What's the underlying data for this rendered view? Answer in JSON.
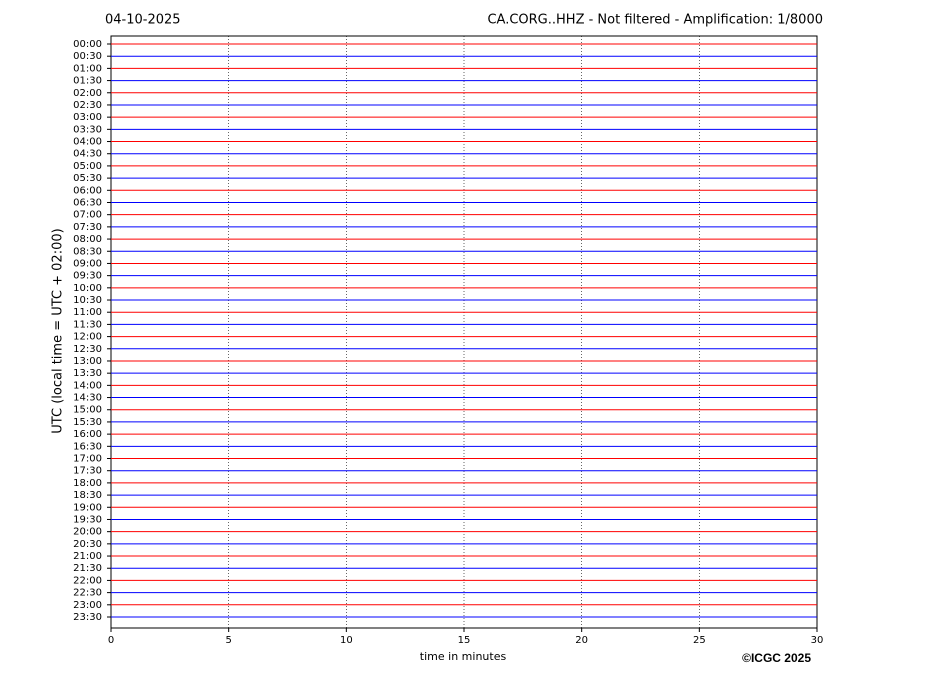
{
  "chart_data": {
    "type": "helicorder",
    "title": "CA.CORG..HHZ - Not filtered - Amplification: 1/8000",
    "date": "04-10-2025",
    "ylabel": "UTC (local time = UTC + 02:00)",
    "xlabel": "time in minutes",
    "credit": "©ICGC 2025",
    "xlim": [
      0,
      30
    ],
    "xticks": [
      0,
      5,
      10,
      15,
      20,
      25,
      30
    ],
    "grid": true,
    "colors": [
      "#ff0000",
      "#0000ff"
    ],
    "categories": [
      "00:00",
      "00:30",
      "01:00",
      "01:30",
      "02:00",
      "02:30",
      "03:00",
      "03:30",
      "04:00",
      "04:30",
      "05:00",
      "05:30",
      "06:00",
      "06:30",
      "07:00",
      "07:30",
      "08:00",
      "08:30",
      "09:00",
      "09:30",
      "10:00",
      "10:30",
      "11:00",
      "11:30",
      "12:00",
      "12:30",
      "13:00",
      "13:30",
      "14:00",
      "14:30",
      "15:00",
      "15:30",
      "16:00",
      "16:30",
      "17:00",
      "17:30",
      "18:00",
      "18:30",
      "19:00",
      "19:30",
      "20:00",
      "20:30",
      "21:00",
      "21:30",
      "22:00",
      "22:30",
      "23:00",
      "23:30"
    ]
  }
}
